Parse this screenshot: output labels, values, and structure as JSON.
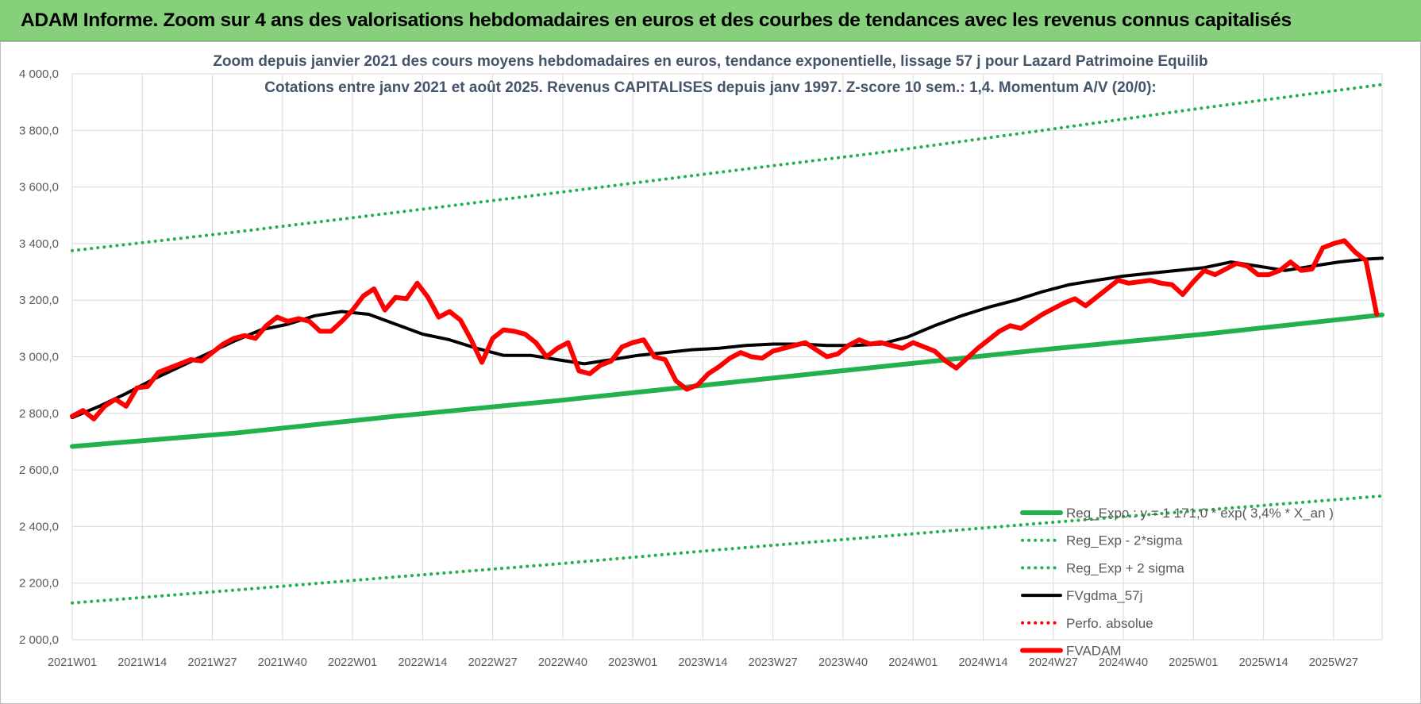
{
  "banner_title": "ADAM Informe. Zoom sur 4 ans des valorisations hebdomadaires en euros et des courbes de tendances avec les revenus connus capitalisés",
  "colors": {
    "banner_bg": "#86cf7b",
    "reg_expo": "#22b14c",
    "fvadam": "#ff0000",
    "fvgdma": "#000000",
    "perfo": "#ff0000",
    "grid": "#d9d9d9",
    "title_text": "#44546a",
    "tick_text": "#595959"
  },
  "chart_data": {
    "type": "line",
    "title_line1": "Zoom depuis janvier 2021 des cours moyens hebdomadaires en euros, tendance exponentielle, lissage 57 j pour Lazard Patrimoine Equilib",
    "title_line2": "Cotations entre janv 2021 et août 2025. Revenus CAPITALISES depuis janv 1997. Z-score 10 sem.: 1,4. Momentum A/V (20/0):",
    "xlabel": "",
    "ylabel": "",
    "ylim": [
      2000,
      4000
    ],
    "grid": true,
    "legend_position": "bottom-right",
    "y_ticks": [
      "4 000,0",
      "3 800,0",
      "3 600,0",
      "3 400,0",
      "3 200,0",
      "3 000,0",
      "2 800,0",
      "2 600,0",
      "2 400,0",
      "2 200,0",
      "2 000,0"
    ],
    "y_tick_values": [
      4000,
      3800,
      3600,
      3400,
      3200,
      3000,
      2800,
      2600,
      2400,
      2200,
      2000
    ],
    "x_ticks": [
      "2021W01",
      "2021W14",
      "2021W27",
      "2021W40",
      "2022W01",
      "2022W14",
      "2022W27",
      "2022W40",
      "2023W01",
      "2023W14",
      "2023W27",
      "2023W40",
      "2024W01",
      "2024W14",
      "2024W27",
      "2024W40",
      "2025W01",
      "2025W14",
      "2025W27"
    ],
    "x_tick_index": [
      0,
      13,
      26,
      39,
      52,
      65,
      78,
      91,
      104,
      117,
      130,
      143,
      156,
      169,
      182,
      195,
      208,
      221,
      234
    ],
    "n_weeks": 243,
    "series": [
      {
        "name": "Reg_Expo : y = 1 171,0 * exp( 3,4% *  X_an )",
        "style": "solid-thick",
        "color": "#22b14c",
        "points": [
          [
            0,
            2683
          ],
          [
            30,
            2730
          ],
          [
            60,
            2790
          ],
          [
            90,
            2845
          ],
          [
            120,
            2905
          ],
          [
            150,
            2965
          ],
          [
            180,
            3025
          ],
          [
            210,
            3080
          ],
          [
            243,
            3148
          ]
        ]
      },
      {
        "name": "Reg_Exp - 2*sigma",
        "style": "dotted",
        "color": "#22b14c",
        "points": [
          [
            0,
            2130
          ],
          [
            30,
            2175
          ],
          [
            60,
            2222
          ],
          [
            90,
            2268
          ],
          [
            120,
            2318
          ],
          [
            150,
            2365
          ],
          [
            180,
            2412
          ],
          [
            210,
            2458
          ],
          [
            243,
            2508
          ]
        ]
      },
      {
        "name": "Reg_Exp + 2 sigma",
        "style": "dotted",
        "color": "#22b14c",
        "points": [
          [
            0,
            3375
          ],
          [
            30,
            3440
          ],
          [
            60,
            3510
          ],
          [
            90,
            3580
          ],
          [
            120,
            3652
          ],
          [
            150,
            3722
          ],
          [
            180,
            3800
          ],
          [
            210,
            3880
          ],
          [
            243,
            3962
          ]
        ]
      },
      {
        "name": "FVgdma_57j",
        "style": "solid",
        "color": "#000000",
        "points": [
          [
            0,
            2785
          ],
          [
            5,
            2825
          ],
          [
            10,
            2870
          ],
          [
            15,
            2920
          ],
          [
            20,
            2965
          ],
          [
            25,
            3010
          ],
          [
            30,
            3055
          ],
          [
            35,
            3095
          ],
          [
            40,
            3115
          ],
          [
            45,
            3145
          ],
          [
            50,
            3160
          ],
          [
            55,
            3150
          ],
          [
            60,
            3115
          ],
          [
            65,
            3080
          ],
          [
            70,
            3060
          ],
          [
            75,
            3030
          ],
          [
            80,
            3005
          ],
          [
            85,
            3005
          ],
          [
            90,
            2990
          ],
          [
            95,
            2975
          ],
          [
            100,
            2990
          ],
          [
            105,
            3005
          ],
          [
            110,
            3015
          ],
          [
            115,
            3025
          ],
          [
            120,
            3030
          ],
          [
            125,
            3040
          ],
          [
            130,
            3045
          ],
          [
            135,
            3045
          ],
          [
            140,
            3040
          ],
          [
            145,
            3040
          ],
          [
            150,
            3045
          ],
          [
            155,
            3070
          ],
          [
            160,
            3110
          ],
          [
            165,
            3145
          ],
          [
            170,
            3175
          ],
          [
            175,
            3200
          ],
          [
            180,
            3230
          ],
          [
            185,
            3255
          ],
          [
            190,
            3270
          ],
          [
            195,
            3285
          ],
          [
            200,
            3295
          ],
          [
            205,
            3305
          ],
          [
            210,
            3315
          ],
          [
            215,
            3335
          ],
          [
            220,
            3320
          ],
          [
            225,
            3305
          ],
          [
            230,
            3320
          ],
          [
            235,
            3335
          ],
          [
            240,
            3345
          ],
          [
            243,
            3348
          ]
        ]
      },
      {
        "name": "Perfo. absolue",
        "style": "dotted",
        "color": "#ff0000",
        "points": []
      },
      {
        "name": "FVADAM",
        "style": "solid-thick",
        "color": "#ff0000",
        "points": [
          [
            0,
            2790
          ],
          [
            2,
            2810
          ],
          [
            4,
            2780
          ],
          [
            6,
            2825
          ],
          [
            8,
            2850
          ],
          [
            10,
            2825
          ],
          [
            12,
            2890
          ],
          [
            14,
            2895
          ],
          [
            16,
            2945
          ],
          [
            18,
            2960
          ],
          [
            20,
            2975
          ],
          [
            22,
            2990
          ],
          [
            24,
            2985
          ],
          [
            26,
            3015
          ],
          [
            28,
            3045
          ],
          [
            30,
            3065
          ],
          [
            32,
            3075
          ],
          [
            34,
            3065
          ],
          [
            36,
            3110
          ],
          [
            38,
            3140
          ],
          [
            40,
            3125
          ],
          [
            42,
            3135
          ],
          [
            44,
            3125
          ],
          [
            46,
            3090
          ],
          [
            48,
            3090
          ],
          [
            50,
            3125
          ],
          [
            52,
            3165
          ],
          [
            54,
            3215
          ],
          [
            56,
            3240
          ],
          [
            58,
            3165
          ],
          [
            60,
            3210
          ],
          [
            62,
            3205
          ],
          [
            64,
            3260
          ],
          [
            66,
            3210
          ],
          [
            68,
            3140
          ],
          [
            70,
            3160
          ],
          [
            72,
            3130
          ],
          [
            74,
            3060
          ],
          [
            76,
            2980
          ],
          [
            78,
            3065
          ],
          [
            80,
            3095
          ],
          [
            82,
            3090
          ],
          [
            84,
            3080
          ],
          [
            86,
            3050
          ],
          [
            88,
            3000
          ],
          [
            90,
            3030
          ],
          [
            92,
            3050
          ],
          [
            94,
            2950
          ],
          [
            96,
            2940
          ],
          [
            98,
            2970
          ],
          [
            100,
            2985
          ],
          [
            102,
            3035
          ],
          [
            104,
            3050
          ],
          [
            106,
            3060
          ],
          [
            108,
            3000
          ],
          [
            110,
            2990
          ],
          [
            112,
            2915
          ],
          [
            114,
            2885
          ],
          [
            116,
            2900
          ],
          [
            118,
            2940
          ],
          [
            120,
            2965
          ],
          [
            122,
            2995
          ],
          [
            124,
            3015
          ],
          [
            126,
            3000
          ],
          [
            128,
            2995
          ],
          [
            130,
            3020
          ],
          [
            132,
            3030
          ],
          [
            134,
            3040
          ],
          [
            136,
            3050
          ],
          [
            138,
            3025
          ],
          [
            140,
            3000
          ],
          [
            142,
            3010
          ],
          [
            144,
            3040
          ],
          [
            146,
            3060
          ],
          [
            148,
            3045
          ],
          [
            150,
            3050
          ],
          [
            152,
            3040
          ],
          [
            154,
            3030
          ],
          [
            156,
            3050
          ],
          [
            158,
            3035
          ],
          [
            160,
            3020
          ],
          [
            162,
            2985
          ],
          [
            164,
            2960
          ],
          [
            166,
            2995
          ],
          [
            168,
            3030
          ],
          [
            170,
            3060
          ],
          [
            172,
            3090
          ],
          [
            174,
            3110
          ],
          [
            176,
            3100
          ],
          [
            178,
            3125
          ],
          [
            180,
            3150
          ],
          [
            182,
            3170
          ],
          [
            184,
            3190
          ],
          [
            186,
            3205
          ],
          [
            188,
            3180
          ],
          [
            190,
            3210
          ],
          [
            192,
            3240
          ],
          [
            194,
            3270
          ],
          [
            196,
            3260
          ],
          [
            198,
            3265
          ],
          [
            200,
            3270
          ],
          [
            202,
            3260
          ],
          [
            204,
            3255
          ],
          [
            206,
            3220
          ],
          [
            208,
            3265
          ],
          [
            210,
            3305
          ],
          [
            212,
            3290
          ],
          [
            214,
            3310
          ],
          [
            216,
            3330
          ],
          [
            218,
            3320
          ],
          [
            220,
            3290
          ],
          [
            222,
            3290
          ],
          [
            224,
            3305
          ],
          [
            226,
            3335
          ],
          [
            228,
            3305
          ],
          [
            230,
            3310
          ],
          [
            232,
            3385
          ],
          [
            234,
            3400
          ],
          [
            236,
            3410
          ],
          [
            238,
            3370
          ],
          [
            240,
            3340
          ],
          [
            242,
            3150
          ]
        ]
      }
    ]
  }
}
